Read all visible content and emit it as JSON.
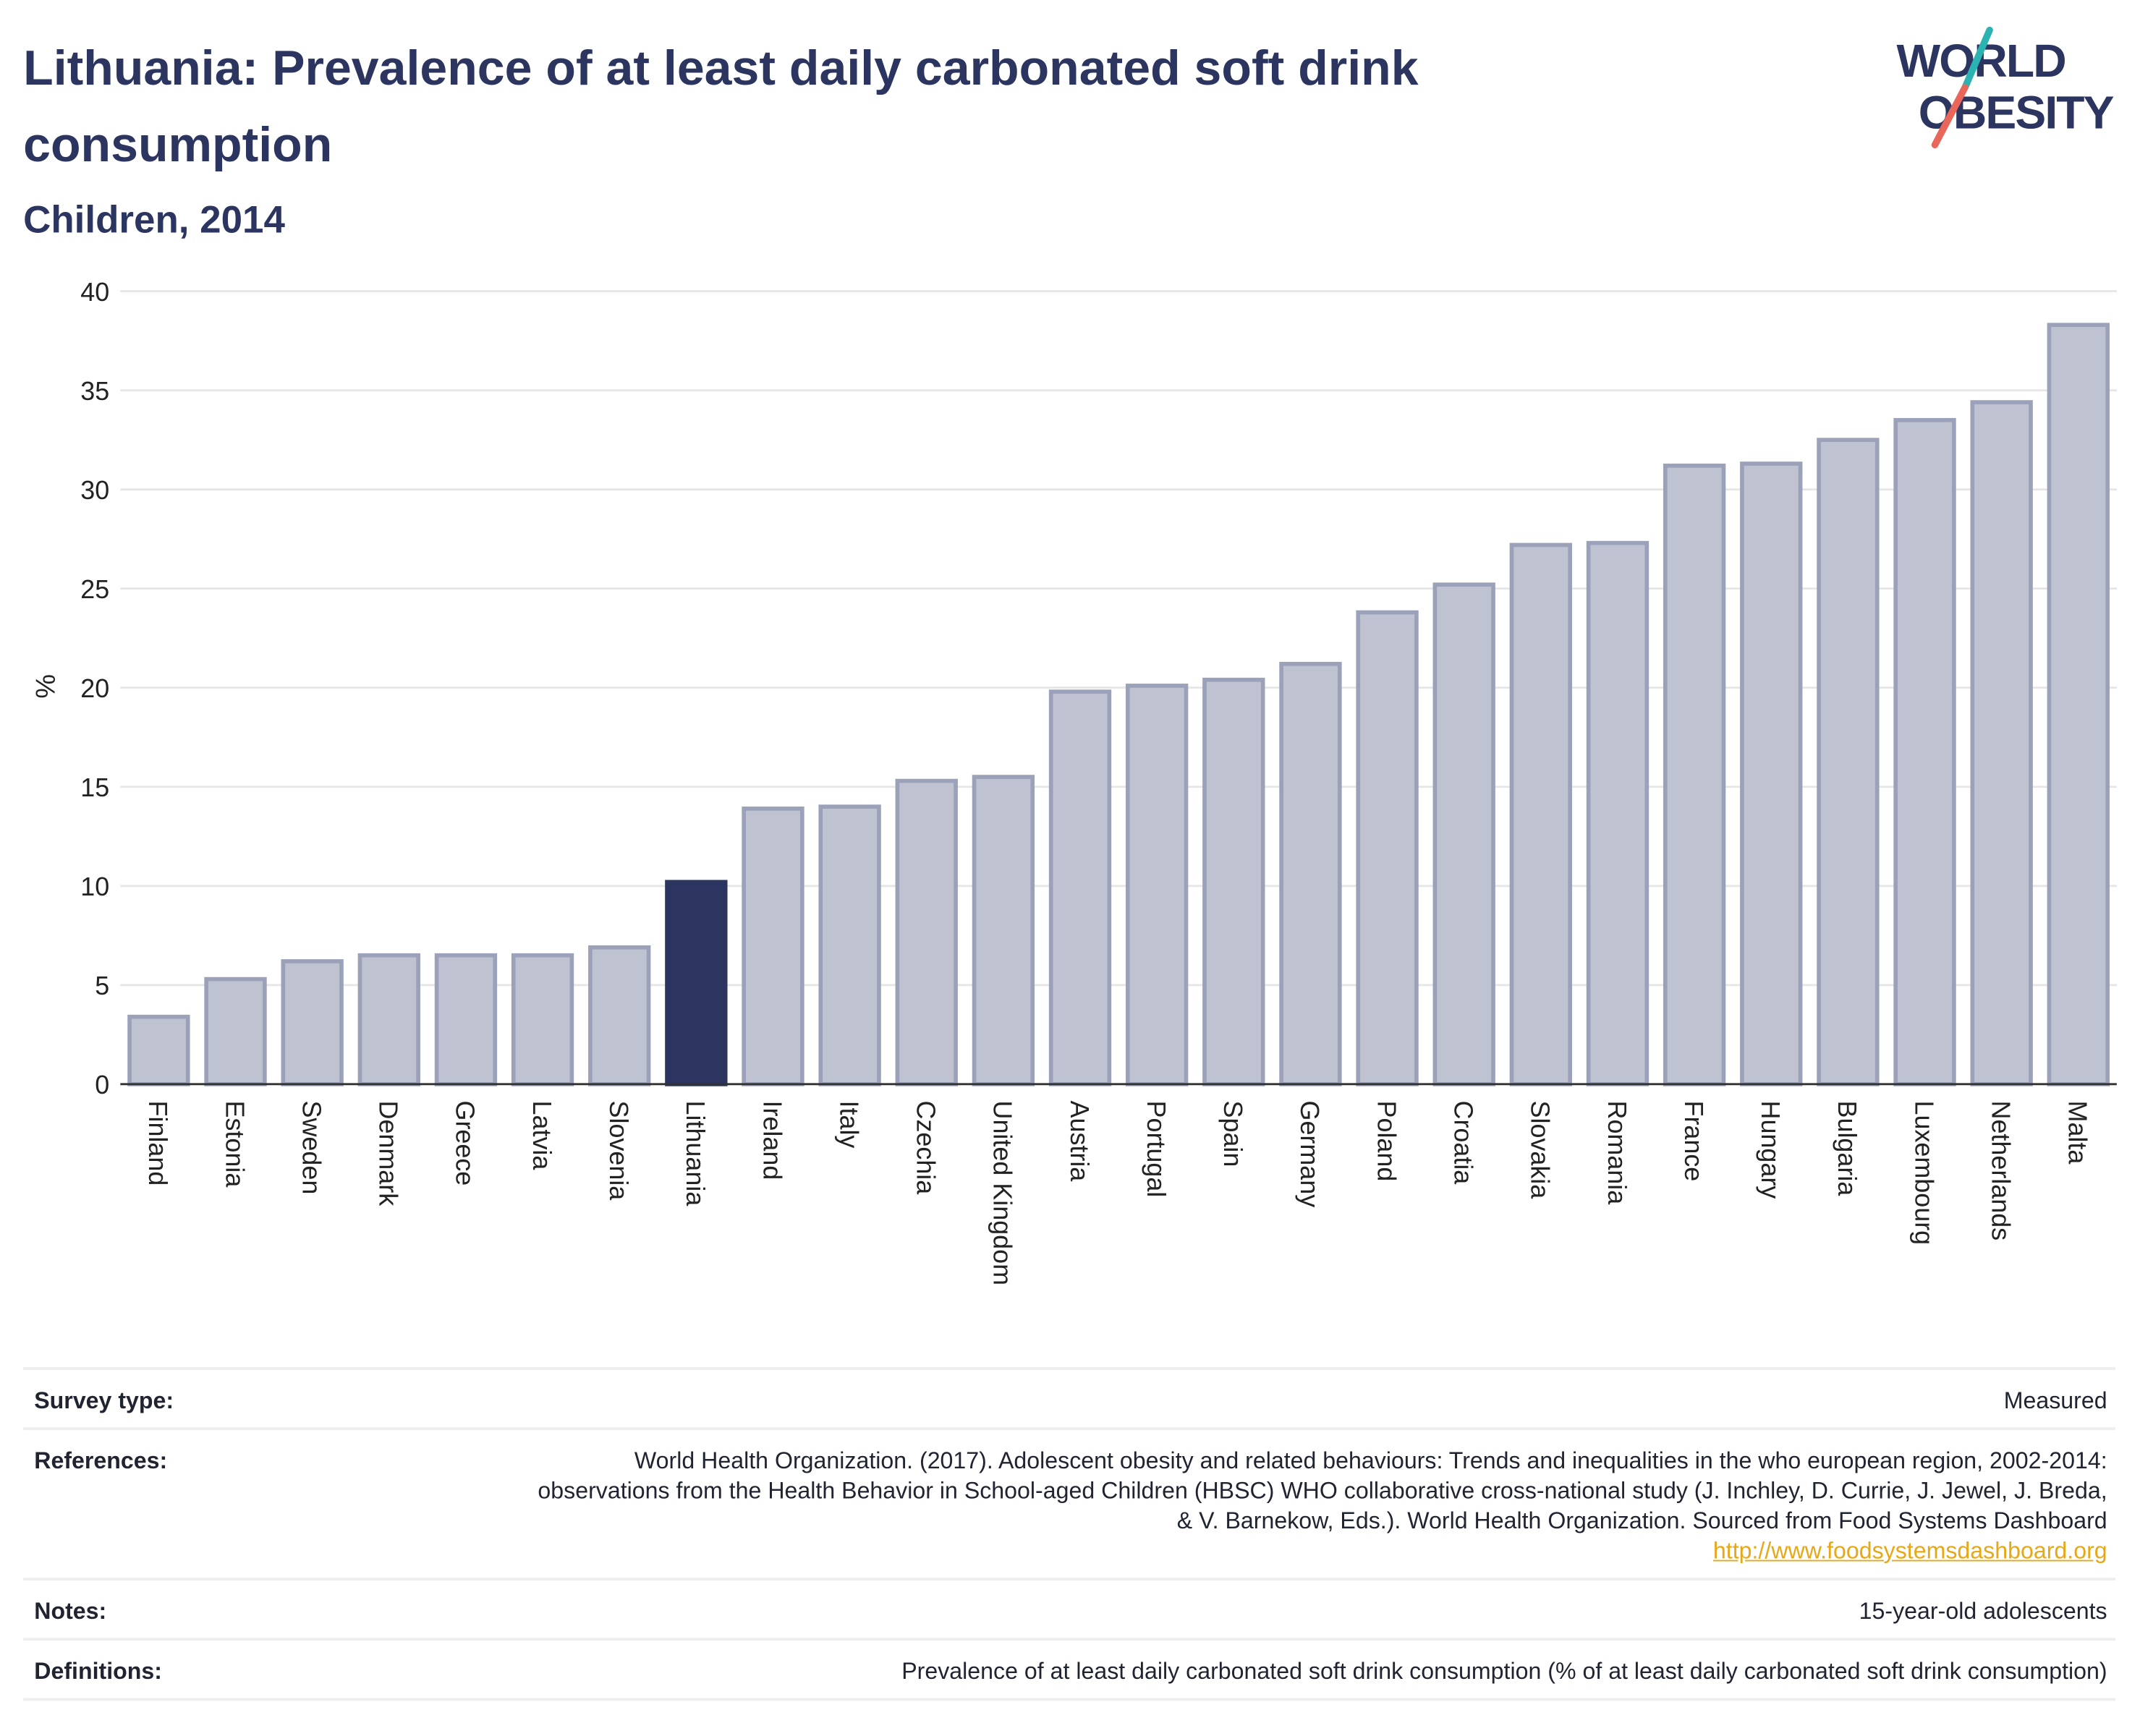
{
  "header": {
    "title": "Lithuania: Prevalence of at least daily carbonated soft drink consumption",
    "subtitle": "Children, 2014"
  },
  "logo": {
    "line1": "WORLD",
    "line2": "OBESITY",
    "colors": {
      "text": "#2b3560",
      "slash_top": "#2bb3b1",
      "slash_bottom": "#e8675a"
    }
  },
  "chart_data": {
    "type": "bar",
    "categories": [
      "Finland",
      "Estonia",
      "Sweden",
      "Denmark",
      "Greece",
      "Latvia",
      "Slovenia",
      "Lithuania",
      "Ireland",
      "Italy",
      "Czechia",
      "United Kingdom",
      "Austria",
      "Portugal",
      "Spain",
      "Germany",
      "Poland",
      "Croatia",
      "Slovakia",
      "Romania",
      "France",
      "Hungary",
      "Bulgaria",
      "Luxembourg",
      "Netherlands",
      "Malta"
    ],
    "values": [
      3.4,
      5.3,
      6.2,
      6.5,
      6.5,
      6.5,
      6.9,
      10.2,
      13.9,
      14.0,
      15.3,
      15.5,
      19.8,
      20.1,
      20.4,
      21.2,
      23.8,
      25.2,
      27.2,
      27.3,
      31.2,
      31.3,
      32.5,
      33.5,
      34.4,
      38.3
    ],
    "highlight": "Lithuania",
    "ylabel": "%",
    "xlabel": "",
    "ylim": [
      0,
      40
    ],
    "yticks": [
      0,
      5,
      10,
      15,
      20,
      25,
      30,
      35,
      40
    ],
    "grid": true,
    "colors": {
      "bar": "#bfc3d1",
      "bar_stroke": "#9ba1b8",
      "highlight": "#2b3560",
      "grid": "#e6e6e6",
      "axis": "#333333"
    }
  },
  "info_table": [
    {
      "label": "Survey type:",
      "value": "Measured"
    },
    {
      "label": "References:",
      "value": "World Health Organization. (2017). Adolescent obesity and related behaviours: Trends and inequalities in the who european region, 2002-2014: observations from the Health Behavior in School-aged Children (HBSC) WHO collaborative cross-national study (J. Inchley, D. Currie, J. Jewel, J. Breda, & V. Barnekow, Eds.). World Health Organization. Sourced from Food Systems Dashboard",
      "link": "http://www.foodsystemsdashboard.org"
    },
    {
      "label": "Notes:",
      "value": "15-year-old adolescents"
    },
    {
      "label": "Definitions:",
      "value": "Prevalence of at least daily carbonated soft drink consumption (% of at least daily carbonated soft drink consumption)"
    }
  ]
}
